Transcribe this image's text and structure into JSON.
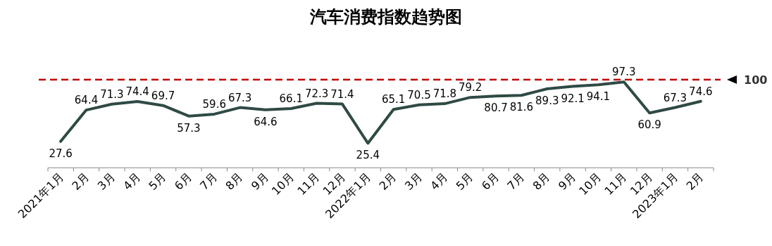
{
  "chart_data": {
    "type": "line",
    "title": "汽车消费指数趋势图",
    "categories": [
      "2021年1月",
      "2月",
      "3月",
      "4月",
      "5月",
      "6月",
      "7月",
      "8月",
      "9月",
      "10月",
      "11月",
      "12月",
      "2022年1月",
      "2月",
      "3月",
      "4月",
      "5月",
      "6月",
      "7月",
      "8月",
      "9月",
      "10月",
      "11月",
      "12月",
      "2023年1月",
      "2月"
    ],
    "series": [
      {
        "color": "#2f4a45",
        "values": [
          27.6,
          64.4,
          71.3,
          74.4,
          69.7,
          57.3,
          59.6,
          67.3,
          64.6,
          66.1,
          72.3,
          71.4,
          25.4,
          65.1,
          70.5,
          71.8,
          79.2,
          80.7,
          81.6,
          89.3,
          92.1,
          94.1,
          97.3,
          60.9,
          67.3,
          74.6
        ]
      }
    ],
    "ref_lines": [
      {
        "axis": "y",
        "value": 100,
        "label": "100",
        "color": "#c00000",
        "line_style": "dashed"
      }
    ],
    "data_labels": true,
    "marker": "none",
    "line_style": "solid",
    "tick_labels": "x"
  }
}
